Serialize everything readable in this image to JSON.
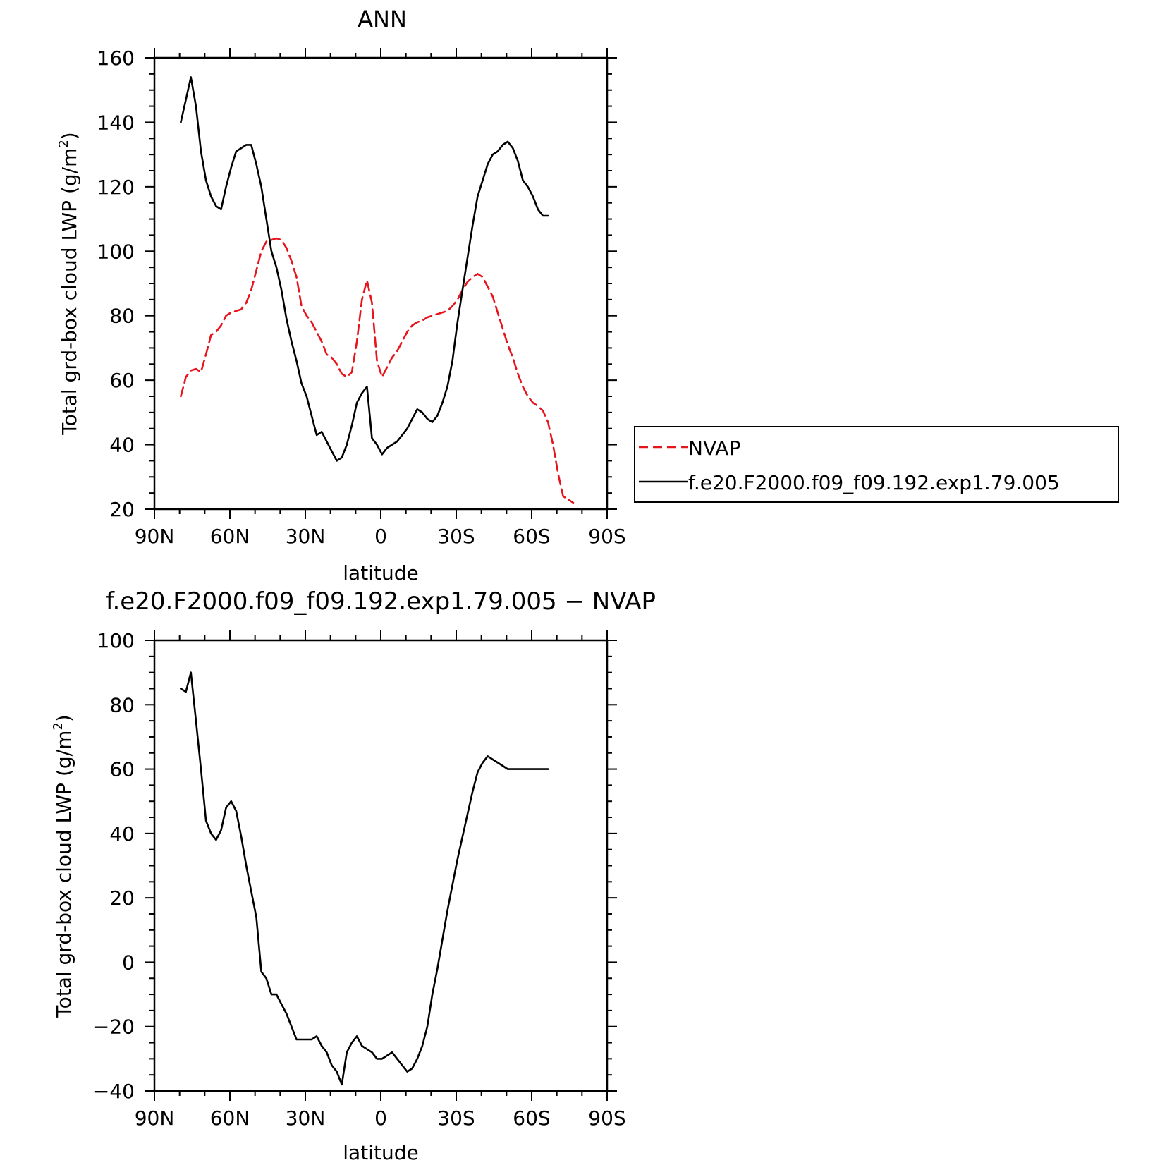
{
  "chart_data": [
    {
      "type": "line",
      "title": "ANN",
      "xlabel": "latitude",
      "ylabel": "Total grd-box cloud LWP (g/m²)",
      "ylabel_base": "Total grd-box cloud LWP (g/m",
      "ylabel_sup": "2",
      "ylabel_close": ")",
      "xlim": [
        90,
        -90
      ],
      "ylim": [
        20,
        160
      ],
      "yticks": [
        20,
        40,
        60,
        80,
        100,
        120,
        140,
        160
      ],
      "yticklabels": [
        "20",
        "40",
        "60",
        "80",
        "100",
        "120",
        "140",
        "160"
      ],
      "xticks": [
        90,
        60,
        30,
        0,
        -30,
        -60,
        -90
      ],
      "xticklabels": [
        "90N",
        "60N",
        "30N",
        "0",
        "30S",
        "60S",
        "90S"
      ],
      "legend": {
        "placement": "right",
        "entries": [
          "NVAP",
          "f.e20.F2000.f09_f09.192.exp1.79.005"
        ]
      },
      "series": [
        {
          "name": "NVAP",
          "color": "#e8141c",
          "dash": "dashed",
          "x": [
            79.5,
            77.5,
            75.5,
            73.5,
            71.5,
            69.5,
            67.5,
            65.5,
            63.5,
            61.5,
            59.5,
            57.5,
            55.5,
            53.5,
            51.5,
            49.5,
            47.5,
            45.5,
            43.5,
            41.5,
            39.5,
            37.5,
            35.5,
            33.5,
            31.5,
            29.5,
            27.5,
            25.5,
            23.5,
            21.5,
            19.5,
            17.5,
            15.5,
            13.5,
            11.5,
            9.5,
            7.5,
            5.5,
            3.5,
            1.5,
            -0.5,
            -2.5,
            -4.5,
            -6.5,
            -8.5,
            -10.5,
            -12.5,
            -14.5,
            -16.5,
            -18.5,
            -20.5,
            -22.5,
            -24.5,
            -26.5,
            -28.5,
            -30.5,
            -32.5,
            -34.5,
            -36.5,
            -38.5,
            -40.5,
            -42.5,
            -44.5,
            -46.5,
            -48.5,
            -50.5,
            -52.5,
            -54.5,
            -56.5,
            -58.5,
            -60.5,
            -62.5,
            -64.5,
            -66.5,
            -68.5,
            -70.5,
            -72.5,
            -74.5,
            -76.5
          ],
          "values": [
            55,
            61,
            63,
            63.5,
            62.5,
            68,
            74,
            75,
            77,
            80,
            81,
            81.5,
            82,
            84,
            88,
            94,
            100,
            103,
            103.5,
            104,
            103.5,
            101,
            97,
            92,
            83,
            80,
            78,
            75,
            72,
            68,
            67,
            65,
            62,
            61,
            62.5,
            72,
            85,
            91,
            84,
            66,
            61,
            64,
            67,
            69,
            72,
            75,
            77,
            78,
            78.5,
            79.5,
            80,
            80.5,
            81,
            81.5,
            83,
            85,
            88,
            90.5,
            92,
            93,
            92,
            89,
            86,
            81,
            76,
            71,
            67,
            62,
            58,
            55,
            53,
            52,
            50.5,
            47,
            40,
            31,
            24,
            23,
            22
          ]
        },
        {
          "name": "f.e20.F2000.f09_f09.192.exp1.79.005",
          "color": "#000000",
          "dash": "solid",
          "x": [
            79.5,
            77.5,
            75.5,
            73.5,
            71.5,
            69.5,
            67.5,
            65.5,
            63.5,
            61.5,
            59.5,
            57.5,
            55.5,
            53.5,
            51.5,
            49.5,
            47.5,
            45.5,
            43.5,
            41.5,
            39.5,
            37.5,
            35.5,
            33.5,
            31.5,
            29.5,
            27.5,
            25.5,
            23.5,
            21.5,
            19.5,
            17.5,
            15.5,
            13.5,
            11.5,
            9.5,
            7.5,
            5.5,
            3.5,
            1.5,
            -0.5,
            -2.5,
            -4.5,
            -6.5,
            -8.5,
            -10.5,
            -12.5,
            -14.5,
            -16.5,
            -18.5,
            -20.5,
            -22.5,
            -24.5,
            -26.5,
            -28.5,
            -30.5,
            -32.5,
            -34.5,
            -36.5,
            -38.5,
            -40.5,
            -42.5,
            -44.5,
            -46.5,
            -48.5,
            -50.5,
            -52.5,
            -54.5,
            -56.5,
            -58.5,
            -60.5,
            -62.5,
            -64.5,
            -66.5
          ],
          "values": [
            140,
            147,
            154,
            145,
            131,
            122,
            117,
            114,
            113,
            120,
            126,
            131,
            132,
            133,
            133,
            127,
            120,
            110,
            100,
            95,
            88,
            79,
            72,
            66,
            59,
            55,
            49,
            43,
            44,
            41,
            38,
            35,
            36,
            40,
            46,
            53,
            56,
            58,
            42,
            40,
            37,
            39,
            40,
            41,
            43,
            45,
            48,
            51,
            50,
            48,
            47,
            49,
            53,
            58,
            66,
            78,
            88,
            98,
            108,
            117,
            122,
            127,
            130,
            131,
            133,
            134,
            132,
            128,
            122,
            120,
            117,
            113,
            111,
            111
          ]
        }
      ]
    },
    {
      "type": "line",
      "title": "f.e20.F2000.f09_f09.192.exp1.79.005 − NVAP",
      "xlabel": "latitude",
      "ylabel": "Total grd-box cloud LWP (g/m²)",
      "ylabel_base": "Total grd-box cloud LWP (g/m",
      "ylabel_sup": "2",
      "ylabel_close": ")",
      "xlim": [
        90,
        -90
      ],
      "ylim": [
        -40,
        100
      ],
      "yticks": [
        -40,
        -20,
        0,
        20,
        40,
        60,
        80,
        100
      ],
      "yticklabels": [
        "−40",
        "−20",
        "0",
        "20",
        "40",
        "60",
        "80",
        "100"
      ],
      "xticks": [
        90,
        60,
        30,
        0,
        -30,
        -60,
        -90
      ],
      "xticklabels": [
        "90N",
        "60N",
        "30N",
        "0",
        "30S",
        "60S",
        "90S"
      ],
      "series": [
        {
          "color": "#000000",
          "dash": "solid",
          "x": [
            79.5,
            77.5,
            75.5,
            73.5,
            71.5,
            69.5,
            67.5,
            65.5,
            63.5,
            61.5,
            59.5,
            57.5,
            55.5,
            53.5,
            51.5,
            49.5,
            47.5,
            45.5,
            43.5,
            41.5,
            39.5,
            37.5,
            35.5,
            33.5,
            31.5,
            29.5,
            27.5,
            25.5,
            23.5,
            21.5,
            19.5,
            17.5,
            15.5,
            13.5,
            11.5,
            9.5,
            7.5,
            5.5,
            3.5,
            1.5,
            -0.5,
            -2.5,
            -4.5,
            -6.5,
            -8.5,
            -10.5,
            -12.5,
            -14.5,
            -16.5,
            -18.5,
            -20.5,
            -22.5,
            -24.5,
            -26.5,
            -28.5,
            -30.5,
            -32.5,
            -34.5,
            -36.5,
            -38.5,
            -40.5,
            -42.5,
            -44.5,
            -46.5,
            -48.5,
            -50.5,
            -52.5,
            -54.5,
            -56.5,
            -58.5,
            -60.5,
            -62.5,
            -64.5,
            -66.5
          ],
          "values": [
            85,
            84,
            90,
            75,
            60,
            44,
            40,
            38,
            41,
            48,
            50,
            47,
            39,
            30,
            22,
            14,
            -3,
            -5,
            -10,
            -10,
            -13,
            -16,
            -20,
            -24,
            -24,
            -24,
            -24,
            -23,
            -26,
            -28,
            -32,
            -34,
            -38,
            -28,
            -25,
            -23,
            -26,
            -27,
            -28,
            -30,
            -30,
            -29,
            -28,
            -30,
            -32,
            -34,
            -33,
            -30,
            -26,
            -20,
            -10,
            -2,
            7,
            16,
            24,
            32,
            39,
            46,
            53,
            59,
            62,
            64,
            63,
            62,
            61,
            60,
            60,
            60,
            60,
            60,
            60,
            60,
            60,
            60
          ]
        }
      ]
    }
  ]
}
